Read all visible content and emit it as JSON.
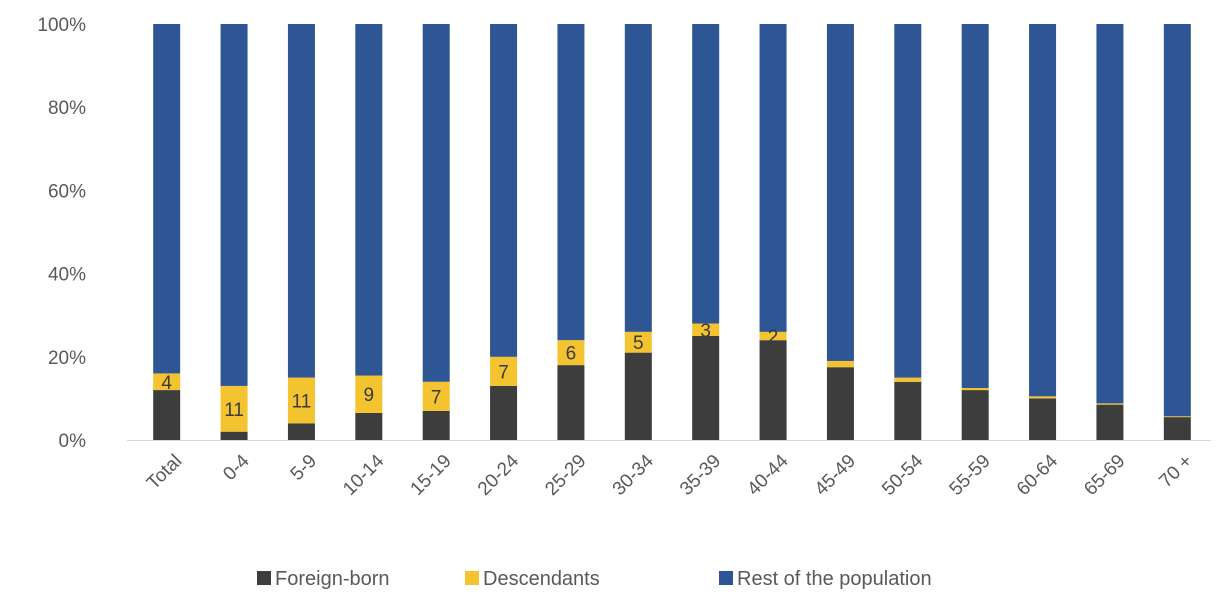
{
  "chart_data": {
    "type": "bar",
    "stacked": true,
    "percent_stacked": true,
    "categories": [
      "Total",
      "0-4",
      "5-9",
      "10-14",
      "15-19",
      "20-24",
      "25-29",
      "30-34",
      "35-39",
      "40-44",
      "45-49",
      "50-54",
      "55-59",
      "60-64",
      "65-69",
      "70 +"
    ],
    "series": [
      {
        "name": "Foreign-born",
        "color": "#3d3d3d",
        "values": [
          12,
          2,
          4,
          6.5,
          7,
          13,
          18,
          21,
          25,
          24,
          17.5,
          14,
          12,
          10,
          8.5,
          5.5
        ]
      },
      {
        "name": "Descendants",
        "color": "#f4c430",
        "values": [
          4,
          11,
          11,
          9,
          7,
          7,
          6,
          5,
          3,
          2,
          1.5,
          1,
          0.5,
          0.5,
          0.3,
          0.2
        ]
      },
      {
        "name": "Rest of the population",
        "color": "#2e5594",
        "values": [
          84,
          87,
          85,
          84.5,
          86,
          80,
          76,
          74,
          72,
          74,
          81,
          85,
          87.5,
          89.5,
          91.2,
          94.3
        ]
      }
    ],
    "data_labels": {
      "series": "Descendants",
      "values": [
        "4",
        "11",
        "11",
        "9",
        "7",
        "7",
        "6",
        "5",
        "3",
        "2",
        "",
        "",
        "",
        "",
        "",
        ""
      ]
    },
    "y_ticks": [
      "0%",
      "20%",
      "40%",
      "60%",
      "80%",
      "100%"
    ],
    "ylim": [
      0,
      100
    ],
    "grid": false,
    "legend": "bottom",
    "title": "",
    "xlabel": "",
    "ylabel": ""
  }
}
